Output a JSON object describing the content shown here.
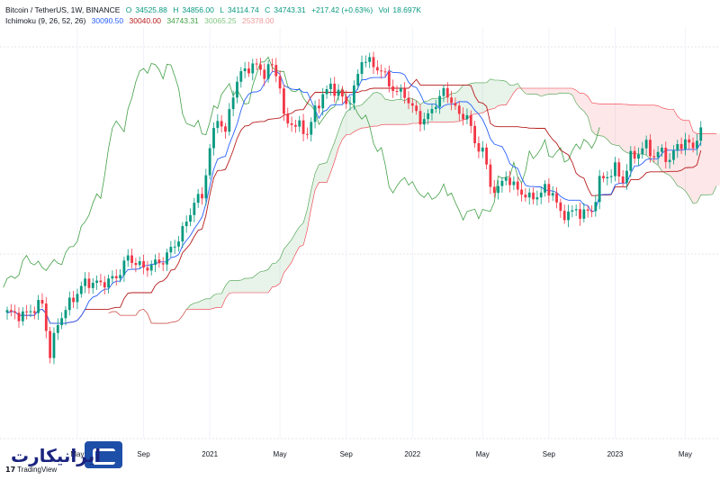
{
  "header": {
    "symbol": "Bitcoin / TetherUS, 1W, BINANCE",
    "open_label": "O",
    "open": "34525.88",
    "high_label": "H",
    "high": "34856.00",
    "low_label": "L",
    "low": "34114.74",
    "close_label": "C",
    "close": "34743.31",
    "change": "+217.42 (+0.63%)",
    "vol_label": "Vol",
    "vol": "18.697K"
  },
  "indicator": {
    "name": "Ichimoku (9, 26, 52, 26)",
    "v1": "30090.50",
    "v2": "30040.00",
    "v3": "34743.31",
    "v4": "30065.25",
    "v5": "25378.00"
  },
  "brand": {
    "tv": "TradingView",
    "logo": "ایرانیکارت"
  },
  "colors": {
    "up": "#089981",
    "down": "#f23645",
    "conversion": "#2962ff",
    "base": "#b71c1c",
    "lagging": "#43a047",
    "cloud_up": "#43a047",
    "cloud_down": "#f23645",
    "grid": "#f0f3fa"
  },
  "chart_data": {
    "type": "candlestick",
    "symbol": "BTCUSDT",
    "timeframe": "1W",
    "x_ticks": [
      "May",
      "Sep",
      "2021",
      "May",
      "Sep",
      "2022",
      "May",
      "Sep",
      "2023",
      "May"
    ],
    "x_tick_week": [
      18,
      35,
      52,
      70,
      87,
      104,
      122,
      139,
      156,
      174
    ],
    "ylim": [
      2500,
      70000
    ],
    "price_curve": [
      [
        0,
        7200
      ],
      [
        4,
        7000
      ],
      [
        9,
        7800
      ],
      [
        11,
        5000
      ],
      [
        13,
        6600
      ],
      [
        16,
        7800
      ],
      [
        20,
        9300
      ],
      [
        24,
        9200
      ],
      [
        28,
        9700
      ],
      [
        31,
        11500
      ],
      [
        35,
        10500
      ],
      [
        40,
        11200
      ],
      [
        44,
        13500
      ],
      [
        46,
        15500
      ],
      [
        48,
        18500
      ],
      [
        50,
        19300
      ],
      [
        52,
        29000
      ],
      [
        54,
        38000
      ],
      [
        56,
        33000
      ],
      [
        58,
        47000
      ],
      [
        60,
        55000
      ],
      [
        62,
        58000
      ],
      [
        64,
        58500
      ],
      [
        66,
        55000
      ],
      [
        68,
        59000
      ],
      [
        70,
        50000
      ],
      [
        71,
        37000
      ],
      [
        73,
        36000
      ],
      [
        75,
        35000
      ],
      [
        77,
        33000
      ],
      [
        79,
        40000
      ],
      [
        81,
        46000
      ],
      [
        83,
        49000
      ],
      [
        85,
        47000
      ],
      [
        87,
        42000
      ],
      [
        89,
        48000
      ],
      [
        91,
        61000
      ],
      [
        92,
        63000
      ],
      [
        94,
        58000
      ],
      [
        96,
        57000
      ],
      [
        98,
        50000
      ],
      [
        100,
        47000
      ],
      [
        102,
        46000
      ],
      [
        104,
        41000
      ],
      [
        106,
        37000
      ],
      [
        108,
        38000
      ],
      [
        110,
        43000
      ],
      [
        112,
        47000
      ],
      [
        114,
        44000
      ],
      [
        116,
        38000
      ],
      [
        118,
        39000
      ],
      [
        120,
        30000
      ],
      [
        122,
        29000
      ],
      [
        124,
        21000
      ],
      [
        126,
        20500
      ],
      [
        128,
        23000
      ],
      [
        130,
        21000
      ],
      [
        132,
        20000
      ],
      [
        134,
        19000
      ],
      [
        136,
        19500
      ],
      [
        138,
        20500
      ],
      [
        140,
        20000
      ],
      [
        142,
        16500
      ],
      [
        144,
        16800
      ],
      [
        146,
        17000
      ],
      [
        148,
        16800
      ],
      [
        150,
        17000
      ],
      [
        152,
        22000
      ],
      [
        154,
        23000
      ],
      [
        156,
        24500
      ],
      [
        158,
        22000
      ],
      [
        160,
        27000
      ],
      [
        162,
        28000
      ],
      [
        164,
        30000
      ],
      [
        166,
        27000
      ],
      [
        168,
        28500
      ],
      [
        170,
        26000
      ],
      [
        172,
        30000
      ],
      [
        174,
        30500
      ],
      [
        176,
        29500
      ],
      [
        178,
        34743
      ]
    ]
  }
}
